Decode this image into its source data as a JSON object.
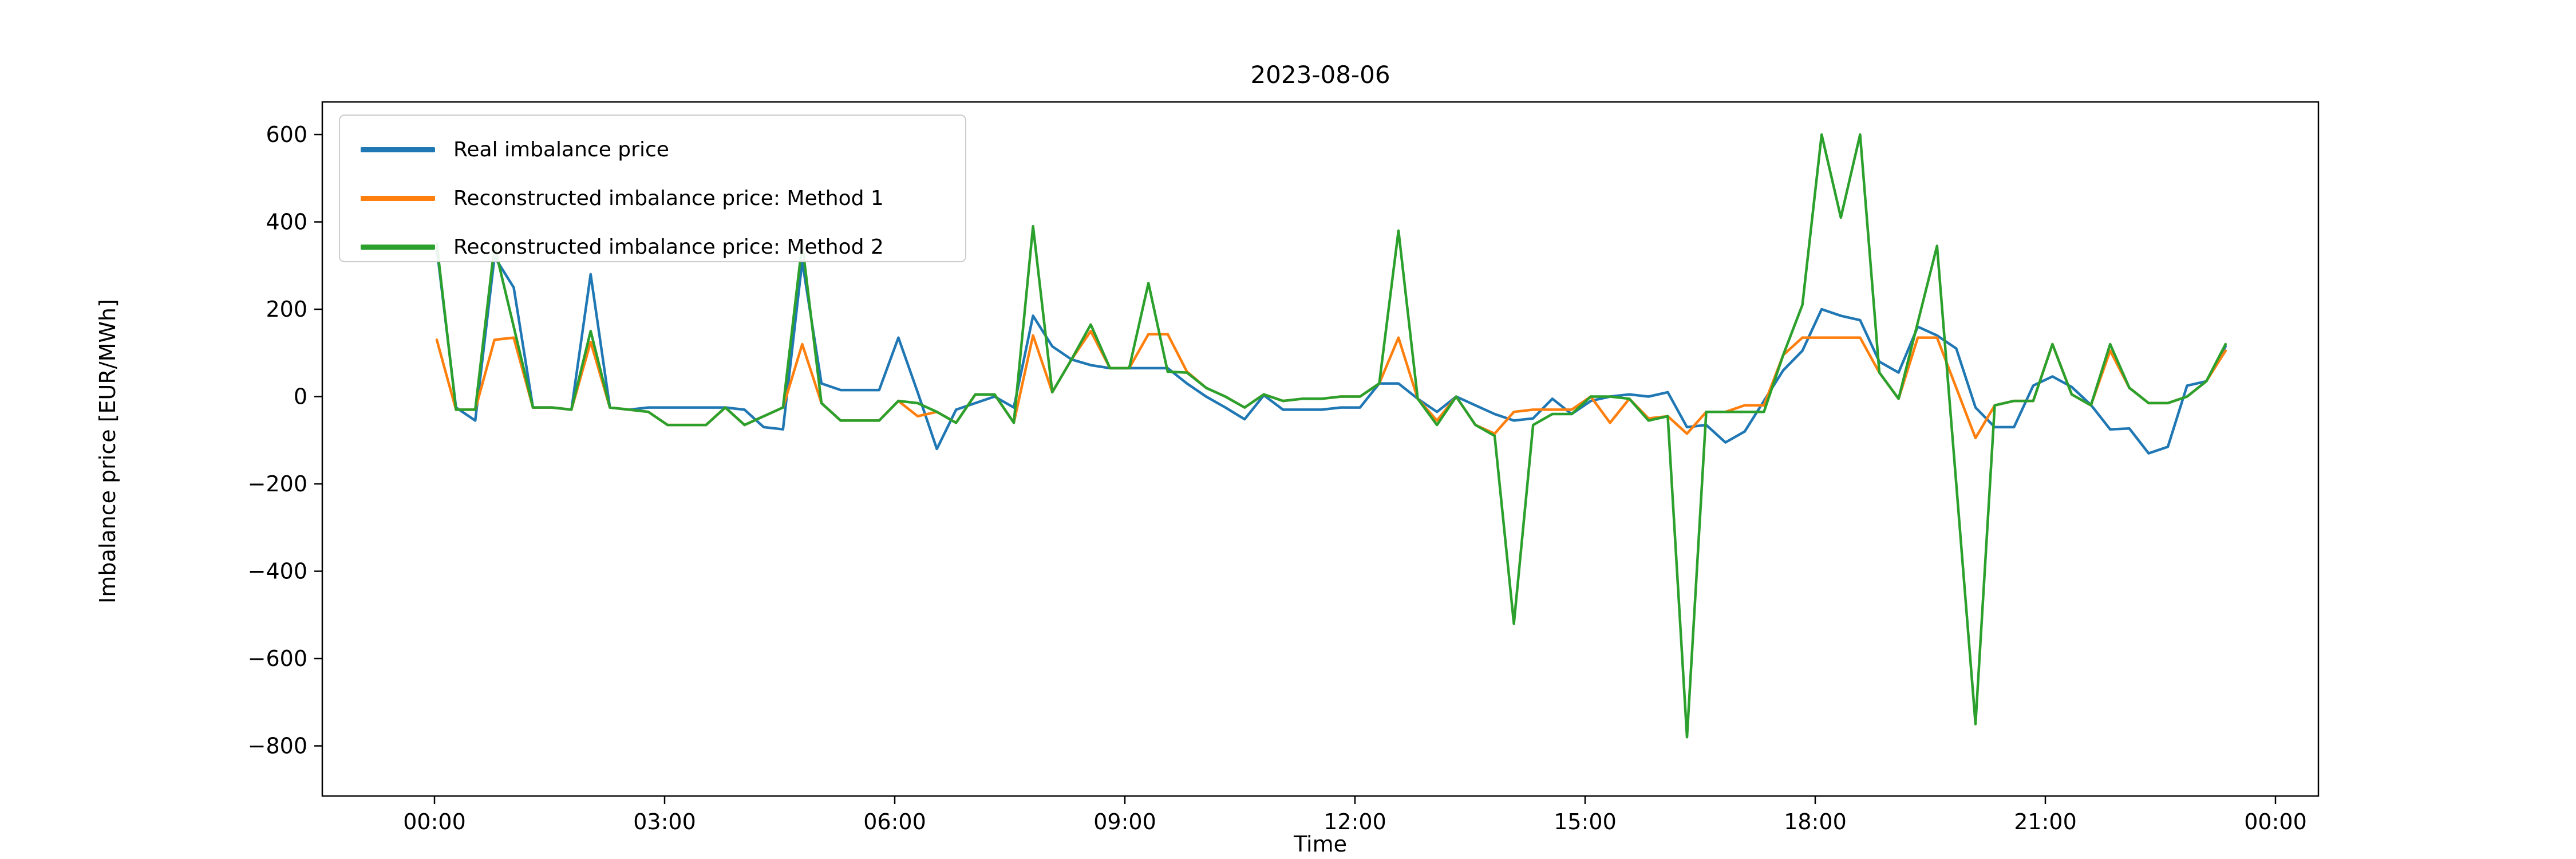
{
  "window": {
    "background": "#ffffff"
  },
  "chart": {
    "title": "2023-08-06"
  },
  "chart_data": {
    "type": "line",
    "title": "2023-08-06",
    "xlabel": "Time",
    "ylabel": "Imbalance price [EUR/MWh]",
    "legend_position": "upper left",
    "grid": false,
    "y_ticks": [
      600,
      400,
      200,
      0,
      -200,
      -400,
      -600,
      -800
    ],
    "ylim": [
      -915,
      675
    ],
    "x_tick_labels": [
      "00:00",
      "03:00",
      "06:00",
      "09:00",
      "12:00",
      "15:00",
      "18:00",
      "21:00",
      "00:00"
    ],
    "x_resolution_minutes": 15,
    "times": [
      "00:00",
      "00:15",
      "00:30",
      "00:45",
      "01:00",
      "01:15",
      "01:30",
      "01:45",
      "02:00",
      "02:15",
      "02:30",
      "02:45",
      "03:00",
      "03:15",
      "03:30",
      "03:45",
      "04:00",
      "04:15",
      "04:30",
      "04:45",
      "05:00",
      "05:15",
      "05:30",
      "05:45",
      "06:00",
      "06:15",
      "06:30",
      "06:45",
      "07:00",
      "07:15",
      "07:30",
      "07:45",
      "08:00",
      "08:15",
      "08:30",
      "08:45",
      "09:00",
      "09:15",
      "09:30",
      "09:45",
      "10:00",
      "10:15",
      "10:30",
      "10:45",
      "11:00",
      "11:15",
      "11:30",
      "11:45",
      "12:00",
      "12:15",
      "12:30",
      "12:45",
      "13:00",
      "13:15",
      "13:30",
      "13:45",
      "14:00",
      "14:15",
      "14:30",
      "14:45",
      "15:00",
      "15:15",
      "15:30",
      "15:45",
      "16:00",
      "16:15",
      "16:30",
      "16:45",
      "17:00",
      "17:15",
      "17:30",
      "17:45",
      "18:00",
      "18:15",
      "18:30",
      "18:45",
      "19:00",
      "19:15",
      "19:30",
      "19:45",
      "20:00",
      "20:15",
      "20:30",
      "20:45",
      "21:00",
      "21:15",
      "21:30",
      "21:45",
      "22:00",
      "22:15",
      "22:30",
      "22:45",
      "23:00",
      "23:15"
    ],
    "series": [
      {
        "name": "Real imbalance price",
        "color": "#1f77b4",
        "values": [
          340,
          -25,
          -55,
          320,
          250,
          -25,
          -25,
          -30,
          280,
          -25,
          -30,
          -25,
          -25,
          -25,
          -25,
          -25,
          -30,
          -70,
          -75,
          310,
          30,
          15,
          15,
          15,
          135,
          10,
          -120,
          -30,
          -15,
          0,
          -25,
          185,
          115,
          85,
          72,
          65,
          65,
          65,
          65,
          30,
          0,
          -25,
          -52,
          3,
          -30,
          -30,
          -30,
          -25,
          -25,
          30,
          30,
          -5,
          -35,
          0,
          -20,
          -40,
          -55,
          -50,
          -5,
          -40,
          -10,
          0,
          5,
          0,
          10,
          -70,
          -65,
          -105,
          -80,
          -10,
          60,
          105,
          200,
          185,
          175,
          80,
          55,
          160,
          140,
          110,
          -25,
          -70,
          -70,
          25,
          46,
          22,
          -19,
          -75,
          -73,
          -130,
          -115,
          25,
          35,
          115
        ]
      },
      {
        "name": "Reconstructed imbalance price: Method 1",
        "color": "#ff7f0e",
        "values": [
          130,
          -30,
          -30,
          130,
          135,
          -25,
          -25,
          -30,
          125,
          -25,
          -30,
          -35,
          -65,
          -65,
          -65,
          -25,
          -65,
          -45,
          -25,
          120,
          -15,
          -55,
          -55,
          -55,
          -10,
          -45,
          -35,
          -60,
          5,
          5,
          -60,
          140,
          10,
          85,
          150,
          65,
          65,
          143,
          143,
          57,
          20,
          0,
          -25,
          5,
          -10,
          -5,
          -5,
          0,
          0,
          30,
          135,
          -5,
          -55,
          0,
          -65,
          -85,
          -35,
          -30,
          -30,
          -30,
          0,
          -60,
          -5,
          -50,
          -45,
          -85,
          -35,
          -35,
          -20,
          -20,
          95,
          135,
          135,
          135,
          135,
          55,
          -5,
          135,
          135,
          20,
          -95,
          -20,
          -10,
          -10,
          120,
          5,
          -20,
          105,
          20,
          -15,
          -15,
          0,
          35,
          105
        ]
      },
      {
        "name": "Reconstructed imbalance price: Method 2",
        "color": "#2ca02c",
        "values": [
          350,
          -30,
          -30,
          345,
          160,
          -25,
          -25,
          -30,
          150,
          -25,
          -30,
          -35,
          -65,
          -65,
          -65,
          -25,
          -65,
          -45,
          -25,
          350,
          -15,
          -55,
          -55,
          -55,
          -10,
          -15,
          -35,
          -60,
          5,
          5,
          -60,
          390,
          10,
          85,
          165,
          65,
          65,
          260,
          57,
          55,
          20,
          0,
          -25,
          5,
          -10,
          -5,
          -5,
          0,
          0,
          30,
          380,
          -5,
          -65,
          0,
          -65,
          -90,
          -520,
          -65,
          -40,
          -40,
          0,
          0,
          -5,
          -55,
          -45,
          -780,
          -35,
          -35,
          -35,
          -35,
          95,
          210,
          600,
          410,
          600,
          55,
          -5,
          170,
          345,
          -200,
          -750,
          -20,
          -10,
          -10,
          120,
          5,
          -20,
          120,
          20,
          -15,
          -15,
          0,
          35,
          120
        ]
      }
    ]
  },
  "layout_colors": {
    "spine": "#000000",
    "text": "#000000",
    "legend_border": "#cccccc"
  }
}
